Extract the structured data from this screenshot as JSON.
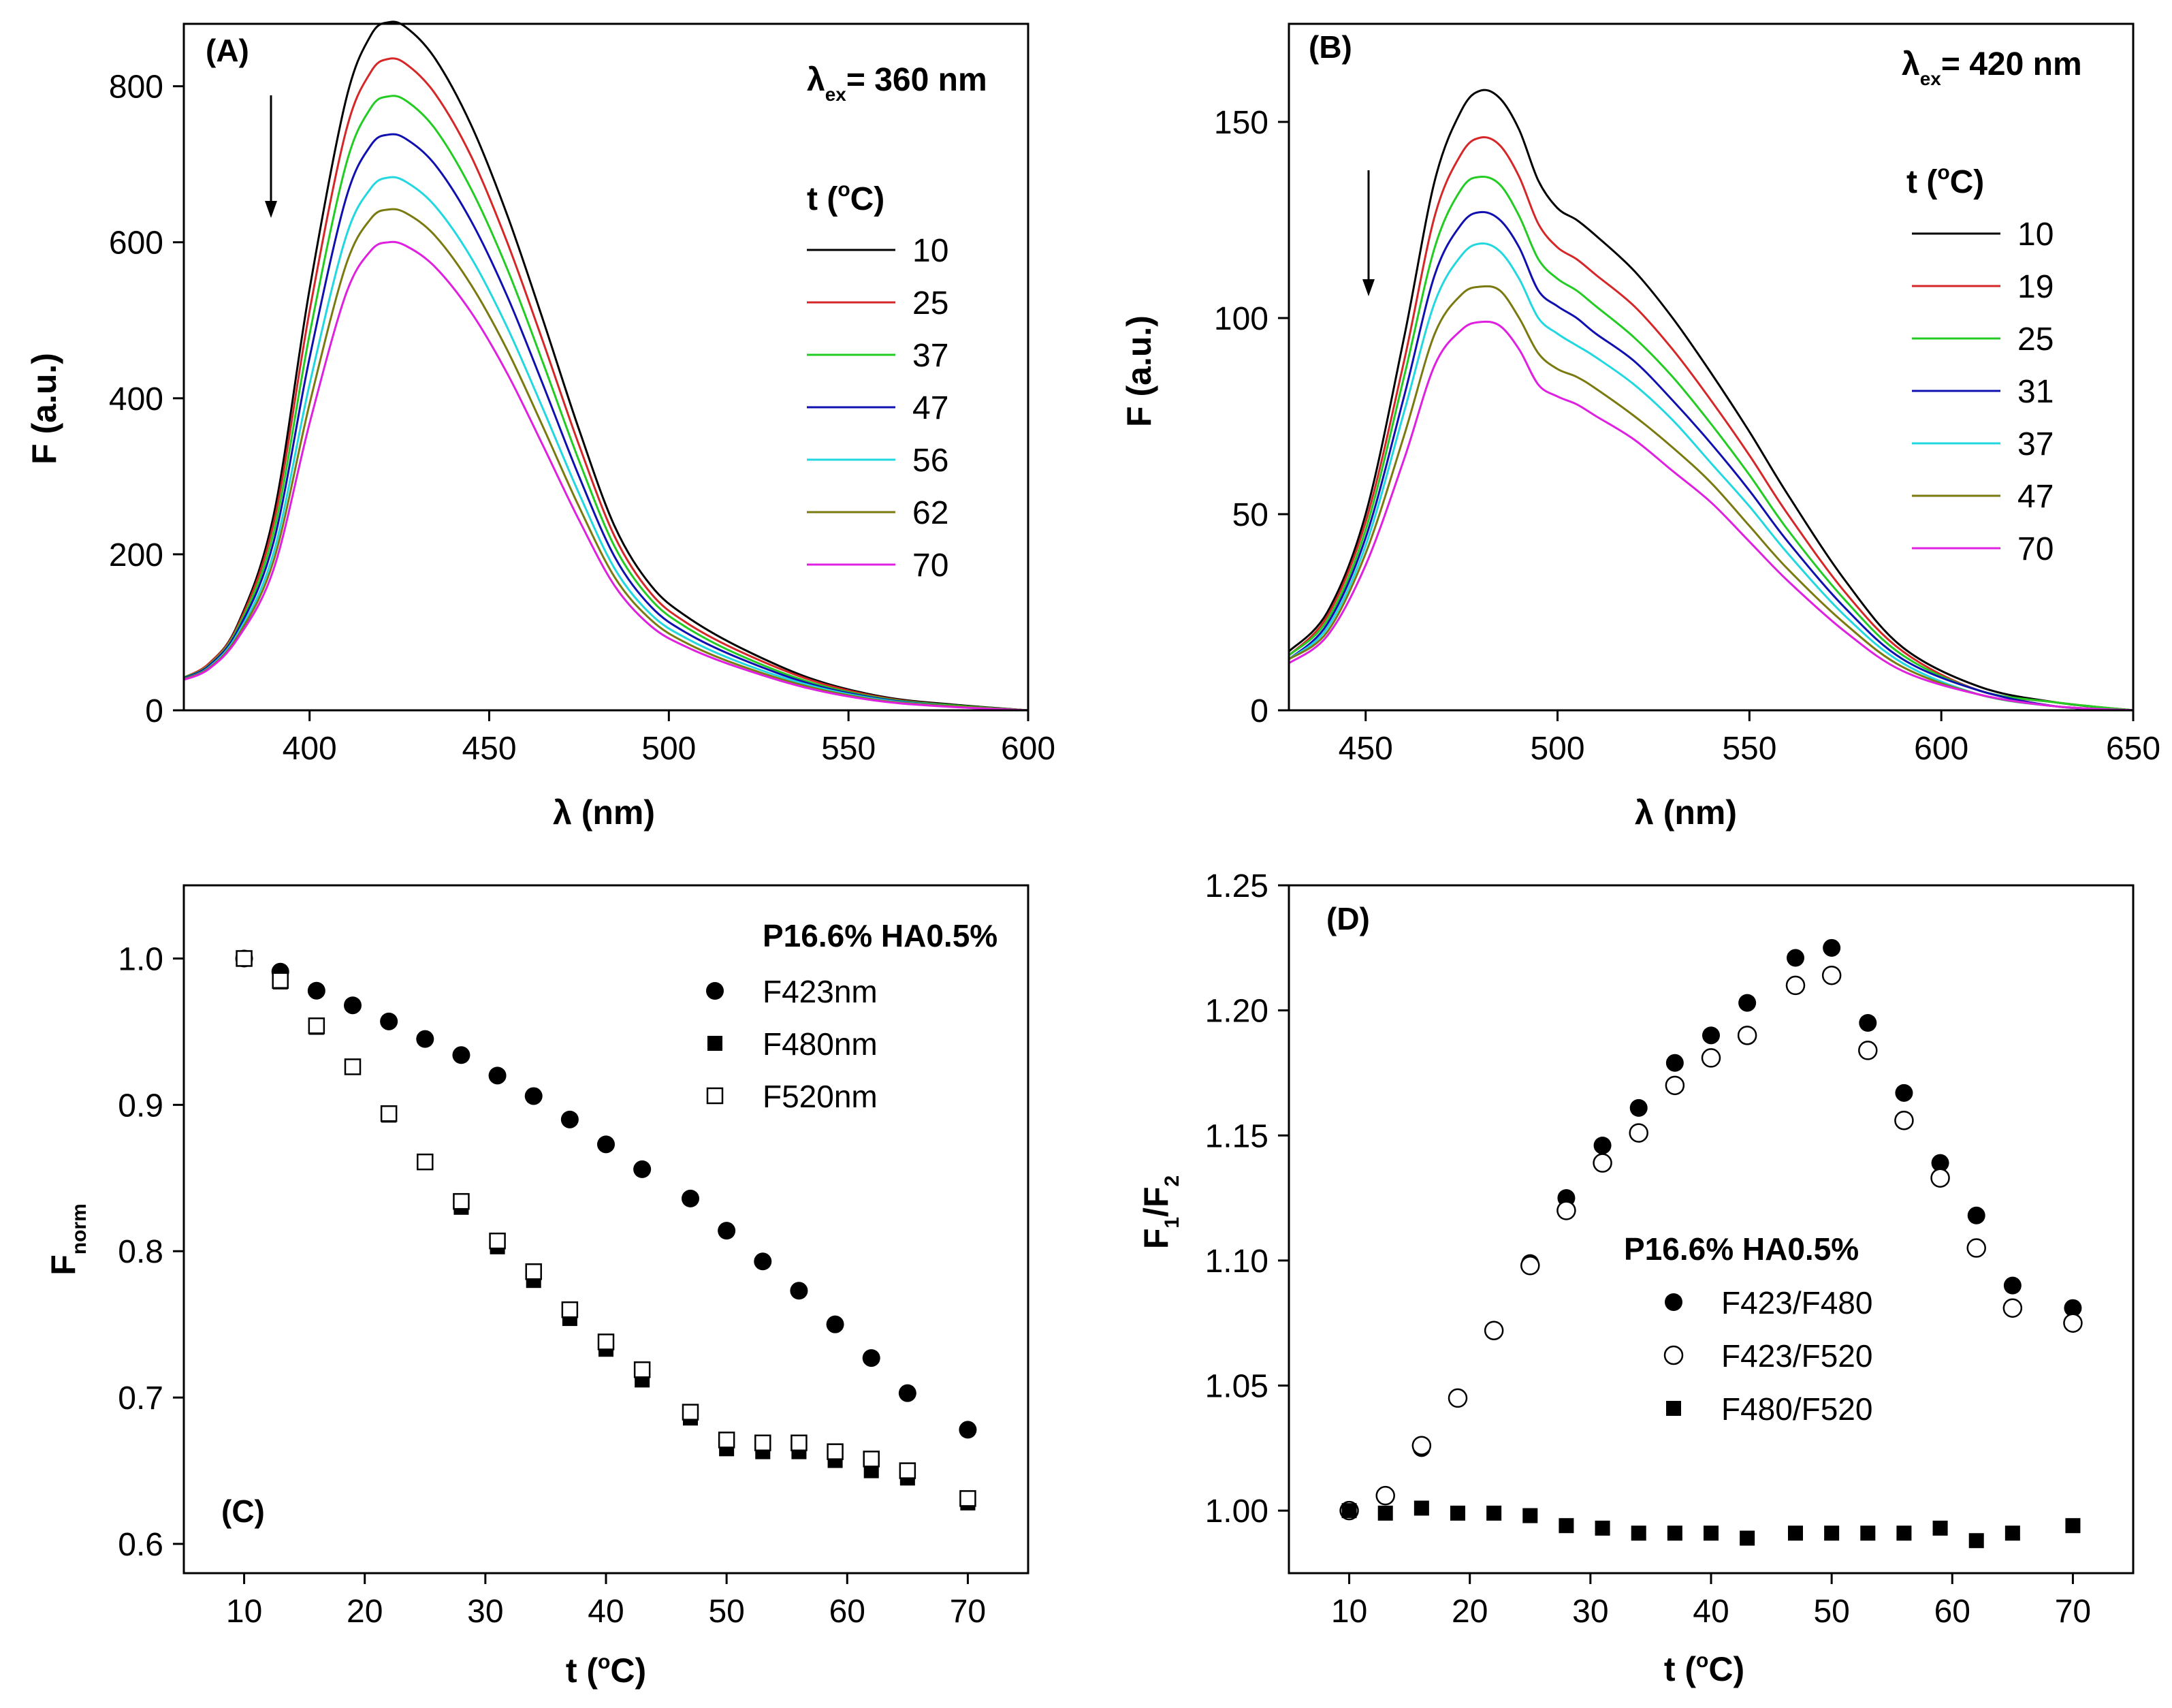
{
  "chart_data": [
    {
      "type": "line",
      "panel_label": "(A)",
      "xlabel": "λ (nm)",
      "ylabel": "F (a.u.)",
      "xlim": [
        365,
        600
      ],
      "ylim": [
        0,
        880
      ],
      "xticks": [
        400,
        450,
        500,
        550,
        600
      ],
      "yticks": [
        0,
        200,
        400,
        600,
        800
      ],
      "annotation": {
        "prefix": "λ",
        "sub": "ex",
        "suffix": "= 360 nm"
      },
      "legend_title": {
        "prefix": "t (",
        "sup": "o",
        "suffix": "C)"
      },
      "peak_x": 422,
      "x": [
        365,
        372,
        380,
        390,
        400,
        410,
        417,
        422,
        427,
        435,
        445,
        455,
        465,
        475,
        485,
        495,
        505,
        520,
        540,
        560,
        580,
        600
      ],
      "series": [
        {
          "name": "10",
          "color": "#000000",
          "values": [
            42,
            60,
            110,
            250,
            540,
            780,
            865,
            882,
            875,
            835,
            750,
            635,
            500,
            360,
            235,
            160,
            120,
            80,
            40,
            17,
            7,
            0
          ]
        },
        {
          "name": "25",
          "color": "#d62728",
          "values": [
            42,
            60,
            108,
            240,
            512,
            740,
            818,
            835,
            828,
            790,
            710,
            600,
            472,
            340,
            222,
            150,
            112,
            75,
            38,
            16,
            6,
            0
          ]
        },
        {
          "name": "37",
          "color": "#22cc22",
          "values": [
            42,
            58,
            105,
            228,
            482,
            697,
            772,
            787,
            781,
            745,
            668,
            566,
            445,
            320,
            209,
            142,
            106,
            70,
            35,
            15,
            6,
            0
          ]
        },
        {
          "name": "47",
          "color": "#1010b0",
          "values": [
            41,
            57,
            102,
            216,
            452,
            654,
            724,
            738,
            732,
            699,
            627,
            531,
            417,
            300,
            196,
            133,
            99,
            66,
            33,
            14,
            5,
            0
          ]
        },
        {
          "name": "56",
          "color": "#22d8e0",
          "values": [
            40,
            55,
            98,
            202,
            418,
            605,
            669,
            683,
            677,
            646,
            580,
            491,
            386,
            278,
            181,
            123,
            92,
            61,
            31,
            13,
            5,
            0
          ]
        },
        {
          "name": "62",
          "color": "#7a7a10",
          "values": [
            40,
            54,
            95,
            192,
            393,
            569,
            630,
            642,
            637,
            608,
            545,
            462,
            363,
            261,
            170,
            116,
            86,
            57,
            29,
            12,
            5,
            0
          ]
        },
        {
          "name": "70",
          "color": "#e020e0",
          "values": [
            39,
            53,
            92,
            181,
            368,
            532,
            589,
            600,
            595,
            568,
            510,
            432,
            339,
            244,
            159,
            108,
            81,
            54,
            27,
            11,
            4,
            0
          ]
        }
      ]
    },
    {
      "type": "line",
      "panel_label": "(B)",
      "xlabel": "λ (nm)",
      "ylabel": "F (a.u.)",
      "xlim": [
        430,
        650
      ],
      "ylim": [
        0,
        175
      ],
      "xticks": [
        450,
        500,
        550,
        600,
        650
      ],
      "yticks": [
        0,
        50,
        100,
        150
      ],
      "annotation": {
        "prefix": "λ",
        "sub": "ex",
        "suffix": "= 420 nm"
      },
      "legend_title": {
        "prefix": "t (",
        "sup": "o",
        "suffix": "C)"
      },
      "peak_x": 480,
      "x": [
        430,
        440,
        450,
        460,
        468,
        475,
        480,
        485,
        490,
        495,
        500,
        505,
        510,
        520,
        530,
        540,
        550,
        560,
        575,
        590,
        610,
        630,
        650
      ],
      "series": [
        {
          "name": "10",
          "color": "#000000",
          "values": [
            15,
            25,
            50,
            95,
            135,
            153,
            158,
            156,
            148,
            135,
            128,
            125,
            121,
            112,
            100,
            86,
            71,
            55,
            33,
            16,
            6,
            2,
            0
          ]
        },
        {
          "name": "19",
          "color": "#d62728",
          "values": [
            14,
            24,
            48,
            89,
            126,
            142,
            146,
            144,
            136,
            124,
            118,
            115,
            111,
            103,
            92,
            79,
            65,
            50,
            30,
            15,
            5,
            2,
            0
          ]
        },
        {
          "name": "25",
          "color": "#22cc22",
          "values": [
            14,
            23,
            46,
            85,
            118,
            133,
            136,
            134,
            126,
            115,
            110,
            107,
            103,
            95,
            85,
            73,
            60,
            46,
            28,
            14,
            5,
            2,
            0
          ]
        },
        {
          "name": "31",
          "color": "#1010b0",
          "values": [
            13,
            22,
            44,
            80,
            111,
            124,
            127,
            125,
            118,
            107,
            103,
            100,
            96,
            89,
            79,
            68,
            56,
            43,
            26,
            13,
            5,
            1,
            0
          ]
        },
        {
          "name": "37",
          "color": "#22d8e0",
          "values": [
            13,
            21,
            42,
            76,
            104,
            116,
            119,
            117,
            110,
            100,
            96,
            93,
            90,
            83,
            74,
            63,
            52,
            40,
            24,
            12,
            4,
            1,
            0
          ]
        },
        {
          "name": "47",
          "color": "#7a7a10",
          "values": [
            13,
            20,
            40,
            70,
            96,
            106,
            108,
            107,
            100,
            91,
            87,
            85,
            82,
            75,
            67,
            58,
            47,
            36,
            22,
            11,
            4,
            1,
            0
          ]
        },
        {
          "name": "70",
          "color": "#e020e0",
          "values": [
            12,
            19,
            37,
            64,
            88,
            97,
            99,
            98,
            92,
            83,
            80,
            78,
            75,
            69,
            61,
            53,
            43,
            33,
            20,
            10,
            4,
            1,
            0
          ]
        }
      ]
    },
    {
      "type": "scatter",
      "panel_label": "(C)",
      "xlabel": {
        "prefix": "t (",
        "sup": "o",
        "suffix": "C)"
      },
      "ylabel": {
        "main": "F",
        "sub": "norm"
      },
      "xlim": [
        5,
        75
      ],
      "ylim": [
        0.58,
        1.05
      ],
      "xticks": [
        10,
        20,
        30,
        40,
        50,
        60,
        70
      ],
      "yticks": [
        "0.6",
        "0.7",
        "0.8",
        "0.9",
        "1.0"
      ],
      "legend_title": "P16.6% HA0.5%",
      "series": [
        {
          "name": "F423nm",
          "marker": "filled-circle",
          "x": [
            10,
            13,
            16,
            19,
            22,
            25,
            28,
            31,
            34,
            37,
            40,
            43,
            47,
            50,
            53,
            56,
            59,
            62,
            65,
            70
          ],
          "values": [
            1.0,
            0.991,
            0.978,
            0.968,
            0.957,
            0.945,
            0.934,
            0.92,
            0.906,
            0.89,
            0.873,
            0.856,
            0.836,
            0.814,
            0.793,
            0.773,
            0.75,
            0.727,
            0.703,
            0.678
          ]
        },
        {
          "name": "F480nm",
          "marker": "filled-square",
          "x": [
            10,
            13,
            16,
            19,
            22,
            25,
            28,
            31,
            34,
            37,
            40,
            43,
            47,
            50,
            53,
            56,
            59,
            62,
            65,
            70
          ],
          "values": [
            1.0,
            0.984,
            0.953,
            0.926,
            0.893,
            0.861,
            0.83,
            0.803,
            0.78,
            0.754,
            0.733,
            0.712,
            0.686,
            0.665,
            0.663,
            0.663,
            0.657,
            0.65,
            0.645,
            0.628
          ]
        },
        {
          "name": "F520nm",
          "marker": "open-square",
          "x": [
            10,
            13,
            16,
            19,
            22,
            25,
            28,
            31,
            34,
            37,
            40,
            43,
            47,
            50,
            53,
            56,
            59,
            62,
            65,
            70
          ],
          "values": [
            1.0,
            0.985,
            0.954,
            0.926,
            0.894,
            0.861,
            0.834,
            0.807,
            0.786,
            0.76,
            0.738,
            0.719,
            0.69,
            0.671,
            0.669,
            0.669,
            0.663,
            0.658,
            0.65,
            0.631
          ]
        }
      ]
    },
    {
      "type": "scatter",
      "panel_label": "(D)",
      "xlabel": {
        "prefix": "t (",
        "sup": "o",
        "suffix": "C)"
      },
      "ylabel": {
        "parts": [
          "F",
          "1",
          "/F",
          "2"
        ]
      },
      "xlim": [
        5,
        75
      ],
      "ylim": [
        0.975,
        1.25
      ],
      "xticks": [
        10,
        20,
        30,
        40,
        50,
        60,
        70
      ],
      "yticks": [
        "1.00",
        "1.05",
        "1.10",
        "1.15",
        "1.20",
        "1.25"
      ],
      "legend_title": "P16.6% HA0.5%",
      "series": [
        {
          "name": "F423/F480",
          "marker": "filled-circle",
          "x": [
            10,
            13,
            16,
            19,
            22,
            25,
            28,
            31,
            34,
            37,
            40,
            43,
            47,
            50,
            53,
            56,
            59,
            62,
            65,
            70
          ],
          "values": [
            1.0,
            1.006,
            1.025,
            1.045,
            1.072,
            1.099,
            1.125,
            1.146,
            1.161,
            1.179,
            1.19,
            1.203,
            1.221,
            1.225,
            1.195,
            1.167,
            1.139,
            1.118,
            1.09,
            1.081
          ]
        },
        {
          "name": "F423/F520",
          "marker": "open-circle",
          "x": [
            10,
            13,
            16,
            19,
            22,
            25,
            28,
            31,
            34,
            37,
            40,
            43,
            47,
            50,
            53,
            56,
            59,
            62,
            65,
            70
          ],
          "values": [
            1.0,
            1.006,
            1.026,
            1.045,
            1.072,
            1.098,
            1.12,
            1.139,
            1.151,
            1.17,
            1.181,
            1.19,
            1.21,
            1.214,
            1.184,
            1.156,
            1.133,
            1.105,
            1.081,
            1.075
          ]
        },
        {
          "name": "F480/F520",
          "marker": "filled-square",
          "x": [
            10,
            13,
            16,
            19,
            22,
            25,
            28,
            31,
            34,
            37,
            40,
            43,
            47,
            50,
            53,
            56,
            59,
            62,
            65,
            70
          ],
          "values": [
            1.0,
            0.999,
            1.001,
            0.999,
            0.999,
            0.998,
            0.994,
            0.993,
            0.991,
            0.991,
            0.991,
            0.989,
            0.991,
            0.991,
            0.991,
            0.991,
            0.993,
            0.988,
            0.991,
            0.994
          ]
        }
      ]
    }
  ]
}
